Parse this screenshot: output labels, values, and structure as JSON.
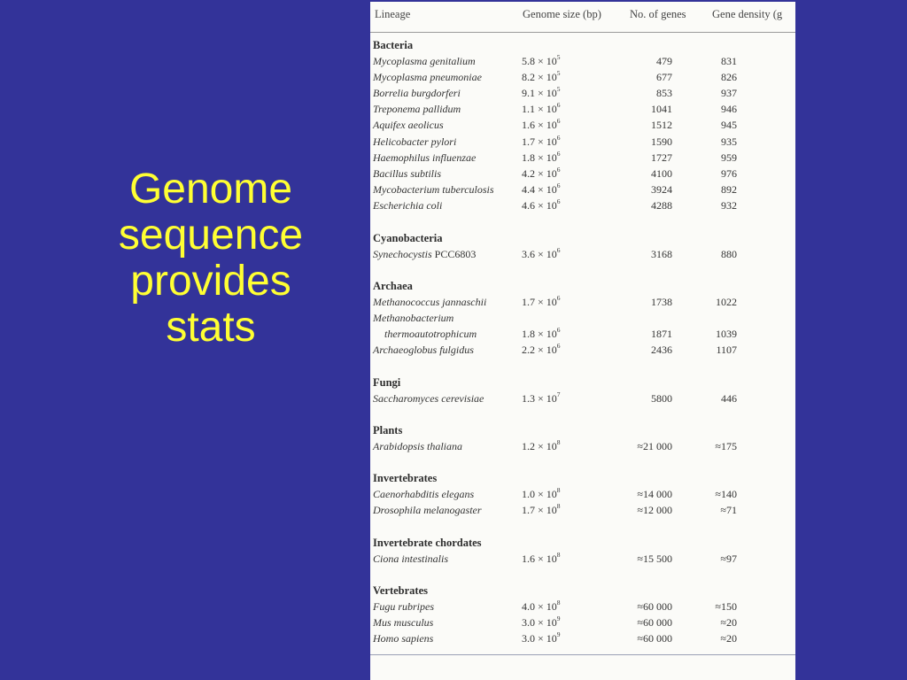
{
  "slide": {
    "title_lines": [
      "Genome",
      "sequence",
      "provides",
      "stats"
    ]
  },
  "table": {
    "headers": {
      "lineage": "Lineage",
      "size": "Genome size (bp)",
      "genes": "No. of genes",
      "density": "Gene density (g"
    },
    "groups": [
      {
        "name": "Bacteria",
        "rows": [
          {
            "species": "Mycoplasma genitalium",
            "mant": "5.8 × 10",
            "exp": "5",
            "genes": "479",
            "density": "831"
          },
          {
            "species": "Mycoplasma pneumoniae",
            "mant": "8.2 × 10",
            "exp": "5",
            "genes": "677",
            "density": "826"
          },
          {
            "species": "Borrelia burgdorferi",
            "mant": "9.1 × 10",
            "exp": "5",
            "genes": "853",
            "density": "937"
          },
          {
            "species": "Treponema pallidum",
            "mant": "1.1 × 10",
            "exp": "6",
            "genes": "1041",
            "density": "946"
          },
          {
            "species": "Aquifex aeolicus",
            "mant": "1.6 × 10",
            "exp": "6",
            "genes": "1512",
            "density": "945"
          },
          {
            "species": "Helicobacter pylori",
            "mant": "1.7 × 10",
            "exp": "6",
            "genes": "1590",
            "density": "935"
          },
          {
            "species": "Haemophilus influenzae",
            "mant": "1.8 × 10",
            "exp": "6",
            "genes": "1727",
            "density": "959"
          },
          {
            "species": "Bacillus subtilis",
            "mant": "4.2 × 10",
            "exp": "6",
            "genes": "4100",
            "density": "976"
          },
          {
            "species": "Mycobacterium tuberculosis",
            "mant": "4.4 × 10",
            "exp": "6",
            "genes": "3924",
            "density": "892"
          },
          {
            "species": "Escherichia coli",
            "mant": "4.6 × 10",
            "exp": "6",
            "genes": "4288",
            "density": "932"
          }
        ]
      },
      {
        "name": "Cyanobacteria",
        "rows": [
          {
            "species": "Synechocystis",
            "suffix": " PCC6803",
            "mant": "3.6 × 10",
            "exp": "6",
            "genes": "3168",
            "density": "880"
          }
        ]
      },
      {
        "name": "Archaea",
        "rows": [
          {
            "species": "Methanococcus jannaschii",
            "mant": "1.7 × 10",
            "exp": "6",
            "genes": "1738",
            "density": "1022"
          },
          {
            "species": "Methanobacterium",
            "mant": "",
            "exp": "",
            "genes": "",
            "density": ""
          },
          {
            "species": "thermoautotrophicum",
            "indent": true,
            "mant": "1.8 × 10",
            "exp": "6",
            "genes": "1871",
            "density": "1039"
          },
          {
            "species": "Archaeoglobus fulgidus",
            "mant": "2.2 × 10",
            "exp": "6",
            "genes": "2436",
            "density": "1107"
          }
        ]
      },
      {
        "name": "Fungi",
        "rows": [
          {
            "species": "Saccharomyces cerevisiae",
            "mant": "1.3 × 10",
            "exp": "7",
            "genes": "5800",
            "density": "446"
          }
        ]
      },
      {
        "name": "Plants",
        "rows": [
          {
            "species": "Arabidopsis thaliana",
            "mant": "1.2 × 10",
            "exp": "8",
            "genes": "≈21 000",
            "density": "≈175"
          }
        ]
      },
      {
        "name": "Invertebrates",
        "rows": [
          {
            "species": "Caenorhabditis elegans",
            "mant": "1.0 × 10",
            "exp": "8",
            "genes": "≈14 000",
            "density": "≈140"
          },
          {
            "species": "Drosophila melanogaster",
            "mant": "1.7 × 10",
            "exp": "8",
            "genes": "≈12 000",
            "density": "≈71"
          }
        ]
      },
      {
        "name": "Invertebrate chordates",
        "rows": [
          {
            "species": "Ciona intestinalis",
            "mant": "1.6 × 10",
            "exp": "8",
            "genes": "≈15 500",
            "density": "≈97"
          }
        ]
      },
      {
        "name": "Vertebrates",
        "rows": [
          {
            "species": "Fugu rubripes",
            "mant": "4.0 × 10",
            "exp": "8",
            "genes": "≈60 000",
            "density": "≈150"
          },
          {
            "species": "Mus musculus",
            "mant": "3.0 × 10",
            "exp": "9",
            "genes": "≈60 000",
            "density": "≈20"
          },
          {
            "species": "Homo sapiens",
            "mant": "3.0 × 10",
            "exp": "9",
            "genes": "≈60 000",
            "density": "≈20"
          }
        ]
      }
    ]
  }
}
